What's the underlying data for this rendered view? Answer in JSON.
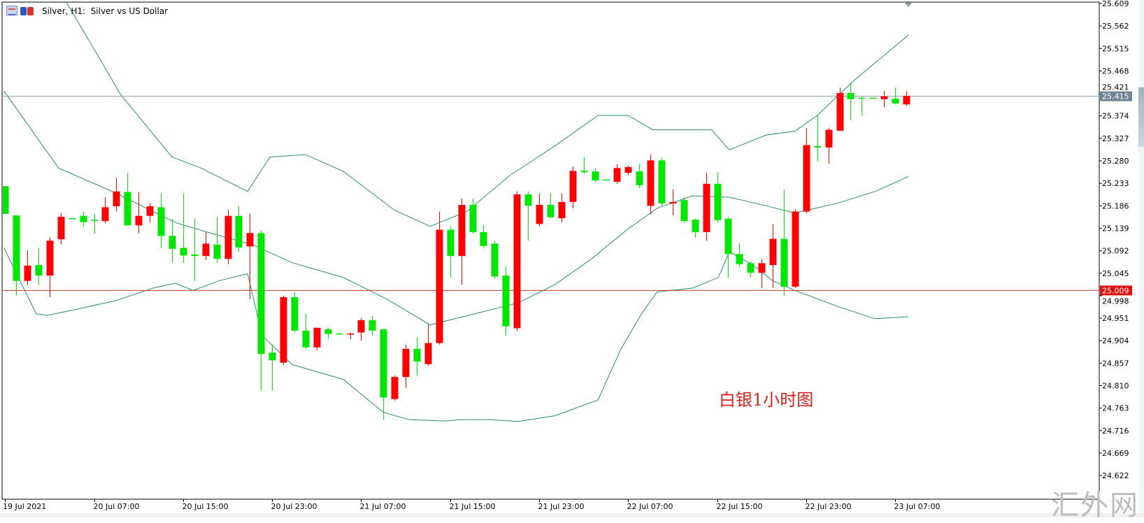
{
  "header": {
    "title": "Silver, H1:  Silver vs US Dollar"
  },
  "annotation": "白银1小时图",
  "watermark": "汇外网",
  "chart_data": {
    "type": "candlestick",
    "title": "Silver, H1:  Silver vs US Dollar",
    "colors": {
      "up": "#ff0000",
      "down": "#00e600",
      "bands": "#2e8b6e",
      "last_price_line": "#8a9aa6",
      "level_line": "#c0392b"
    },
    "ylim": [
      24.622,
      25.609
    ],
    "y_ticks": [
      "25.609",
      "25.562",
      "25.515",
      "25.468",
      "25.421",
      "25.374",
      "25.327",
      "25.280",
      "25.233",
      "25.186",
      "25.139",
      "25.092",
      "25.045",
      "24.998",
      "24.951",
      "24.904",
      "24.857",
      "24.810",
      "24.763",
      "24.716",
      "24.669",
      "24.622"
    ],
    "x_ticks": [
      {
        "i": 0,
        "label": "19 Jul 2021"
      },
      {
        "i": 8,
        "label": "20 Jul 07:00"
      },
      {
        "i": 16,
        "label": "20 Jul 15:00"
      },
      {
        "i": 24,
        "label": "20 Jul 23:00"
      },
      {
        "i": 32,
        "label": "21 Jul 07:00"
      },
      {
        "i": 40,
        "label": "21 Jul 15:00"
      },
      {
        "i": 48,
        "label": "21 Jul 23:00"
      },
      {
        "i": 56,
        "label": "22 Jul 07:00"
      },
      {
        "i": 64,
        "label": "22 Jul 15:00"
      },
      {
        "i": 72,
        "label": "22 Jul 23:00"
      },
      {
        "i": 80,
        "label": "23 Jul 07:00"
      }
    ],
    "last_price": {
      "value": 25.415,
      "label": "25.415"
    },
    "level_line": {
      "value": 25.009,
      "label": "25.009"
    },
    "ohlc": [
      [
        25.227,
        25.227,
        25.169,
        25.169
      ],
      [
        25.166,
        25.166,
        24.998,
        25.029
      ],
      [
        25.029,
        25.093,
        25.021,
        25.061
      ],
      [
        25.062,
        25.098,
        25.021,
        25.04
      ],
      [
        25.04,
        25.12,
        24.995,
        25.113
      ],
      [
        25.116,
        25.171,
        25.105,
        25.163
      ],
      [
        25.16,
        25.16,
        25.159,
        25.159
      ],
      [
        25.165,
        25.174,
        25.143,
        25.152
      ],
      [
        25.157,
        25.169,
        25.128,
        25.156
      ],
      [
        25.154,
        25.204,
        25.149,
        25.183
      ],
      [
        25.185,
        25.245,
        25.174,
        25.216
      ],
      [
        25.215,
        25.255,
        25.145,
        25.145
      ],
      [
        25.145,
        25.215,
        25.128,
        25.165
      ],
      [
        25.165,
        25.192,
        25.151,
        25.185
      ],
      [
        25.183,
        25.212,
        25.098,
        25.123
      ],
      [
        25.123,
        25.159,
        25.067,
        25.096
      ],
      [
        25.098,
        25.212,
        25.067,
        25.082
      ],
      [
        25.084,
        25.159,
        25.029,
        25.081
      ],
      [
        25.081,
        25.131,
        25.072,
        25.107
      ],
      [
        25.105,
        25.163,
        25.067,
        25.075
      ],
      [
        25.075,
        25.178,
        25.064,
        25.165
      ],
      [
        25.165,
        25.186,
        25.09,
        25.099
      ],
      [
        25.101,
        25.169,
        24.991,
        25.129
      ],
      [
        25.129,
        25.134,
        24.8,
        24.876
      ],
      [
        24.879,
        24.896,
        24.8,
        24.863
      ],
      [
        24.858,
        24.998,
        24.854,
        24.995
      ],
      [
        24.995,
        25.006,
        24.921,
        24.925
      ],
      [
        24.925,
        24.96,
        24.887,
        24.89
      ],
      [
        24.89,
        24.931,
        24.884,
        24.931
      ],
      [
        24.928,
        24.931,
        24.907,
        24.918
      ],
      [
        24.919,
        24.919,
        24.918,
        24.918
      ],
      [
        24.918,
        24.921,
        24.907,
        24.919
      ],
      [
        24.921,
        24.951,
        24.904,
        24.947
      ],
      [
        24.947,
        24.956,
        24.915,
        24.925
      ],
      [
        24.928,
        24.928,
        24.739,
        24.785
      ],
      [
        24.782,
        24.831,
        24.779,
        24.828
      ],
      [
        24.828,
        24.896,
        24.805,
        24.887
      ],
      [
        24.887,
        24.911,
        24.831,
        24.86
      ],
      [
        24.855,
        24.939,
        24.851,
        24.899
      ],
      [
        24.899,
        25.174,
        24.896,
        25.136
      ],
      [
        25.136,
        25.143,
        25.036,
        25.081
      ],
      [
        25.081,
        25.201,
        25.021,
        25.188
      ],
      [
        25.188,
        25.201,
        25.128,
        25.131
      ],
      [
        25.131,
        25.146,
        25.098,
        25.102
      ],
      [
        25.107,
        25.113,
        25.033,
        25.038
      ],
      [
        25.04,
        25.059,
        24.915,
        24.934
      ],
      [
        24.93,
        25.216,
        24.925,
        25.21
      ],
      [
        25.21,
        25.216,
        25.113,
        25.186
      ],
      [
        25.148,
        25.212,
        25.143,
        25.188
      ],
      [
        25.188,
        25.212,
        25.159,
        25.162
      ],
      [
        25.16,
        25.212,
        25.151,
        25.194
      ],
      [
        25.194,
        25.268,
        25.181,
        25.259
      ],
      [
        25.259,
        25.288,
        25.253,
        25.256
      ],
      [
        25.258,
        25.265,
        25.235,
        25.239
      ],
      [
        25.241,
        25.241,
        25.239,
        25.239
      ],
      [
        25.236,
        25.273,
        25.232,
        25.265
      ],
      [
        25.255,
        25.27,
        25.25,
        25.267
      ],
      [
        25.258,
        25.273,
        25.223,
        25.229
      ],
      [
        25.186,
        25.293,
        25.168,
        25.281
      ],
      [
        25.281,
        25.287,
        25.186,
        25.191
      ],
      [
        25.191,
        25.22,
        25.166,
        25.194
      ],
      [
        25.198,
        25.204,
        25.151,
        25.154
      ],
      [
        25.157,
        25.159,
        25.12,
        25.131
      ],
      [
        25.131,
        25.255,
        25.113,
        25.232
      ],
      [
        25.232,
        25.256,
        25.151,
        25.156
      ],
      [
        25.159,
        25.162,
        25.036,
        25.085
      ],
      [
        25.085,
        25.108,
        25.059,
        25.064
      ],
      [
        25.066,
        25.07,
        25.036,
        25.046
      ],
      [
        25.046,
        25.075,
        25.014,
        25.066
      ],
      [
        25.062,
        25.148,
        25.014,
        25.117
      ],
      [
        25.117,
        25.22,
        24.998,
        25.017
      ],
      [
        25.017,
        25.178,
        25.014,
        25.174
      ],
      [
        25.174,
        25.349,
        25.171,
        25.313
      ],
      [
        25.311,
        25.377,
        25.279,
        25.308
      ],
      [
        25.308,
        25.349,
        25.274,
        25.345
      ],
      [
        25.343,
        25.433,
        25.342,
        25.422
      ],
      [
        25.422,
        25.442,
        25.365,
        25.409
      ],
      [
        25.412,
        25.415,
        25.375,
        25.41
      ],
      [
        25.412,
        25.412,
        25.41,
        25.41
      ],
      [
        25.409,
        25.426,
        25.392,
        25.415
      ],
      [
        25.41,
        25.433,
        25.398,
        25.4
      ],
      [
        25.398,
        25.426,
        25.395,
        25.416
      ]
    ],
    "bands": {
      "upper": [
        [
          5.0,
          25.64
        ],
        [
          5.4,
          25.616
        ],
        [
          10.4,
          25.418
        ],
        [
          15.0,
          25.288
        ],
        [
          17.6,
          25.265
        ],
        [
          21.8,
          25.216
        ],
        [
          23.8,
          25.288
        ],
        [
          27.0,
          25.293
        ],
        [
          30.4,
          25.258
        ],
        [
          35.0,
          25.177
        ],
        [
          38.2,
          25.143
        ],
        [
          41.5,
          25.174
        ],
        [
          45.4,
          25.25
        ],
        [
          49.4,
          25.311
        ],
        [
          53.3,
          25.375
        ],
        [
          56.0,
          25.375
        ],
        [
          58.2,
          25.345
        ],
        [
          63.5,
          25.345
        ],
        [
          65.1,
          25.303
        ],
        [
          68.4,
          25.334
        ],
        [
          71.0,
          25.342
        ],
        [
          73.0,
          25.375
        ],
        [
          76.3,
          25.448
        ],
        [
          81.2,
          25.543
        ]
      ],
      "middle": [
        [
          -0.1,
          25.426
        ],
        [
          4.8,
          25.265
        ],
        [
          10.0,
          25.212
        ],
        [
          15.3,
          25.151
        ],
        [
          18.6,
          25.128
        ],
        [
          22.2,
          25.105
        ],
        [
          25.8,
          25.067
        ],
        [
          30.4,
          25.036
        ],
        [
          34.3,
          24.991
        ],
        [
          38.2,
          24.937
        ],
        [
          42.2,
          24.96
        ],
        [
          46.1,
          24.983
        ],
        [
          49.4,
          25.021
        ],
        [
          52.7,
          25.075
        ],
        [
          55.9,
          25.136
        ],
        [
          58.6,
          25.181
        ],
        [
          61.8,
          25.207
        ],
        [
          65.1,
          25.204
        ],
        [
          68.4,
          25.186
        ],
        [
          71.0,
          25.171
        ],
        [
          74.9,
          25.192
        ],
        [
          78.2,
          25.216
        ],
        [
          81.2,
          25.247
        ]
      ],
      "lower": [
        [
          -0.1,
          25.098
        ],
        [
          2.8,
          24.96
        ],
        [
          3.8,
          24.957
        ],
        [
          6.1,
          24.968
        ],
        [
          10.0,
          24.988
        ],
        [
          13.3,
          25.014
        ],
        [
          15.3,
          25.024
        ],
        [
          16.9,
          25.009
        ],
        [
          19.2,
          25.029
        ],
        [
          21.8,
          25.044
        ],
        [
          23.1,
          24.915
        ],
        [
          25.8,
          24.854
        ],
        [
          30.4,
          24.823
        ],
        [
          34.0,
          24.754
        ],
        [
          36.3,
          24.739
        ],
        [
          39.5,
          24.736
        ],
        [
          40.9,
          24.739
        ],
        [
          43.5,
          24.739
        ],
        [
          46.1,
          24.735
        ],
        [
          49.4,
          24.747
        ],
        [
          53.3,
          24.78
        ],
        [
          55.3,
          24.884
        ],
        [
          57.2,
          24.96
        ],
        [
          58.6,
          25.006
        ],
        [
          61.8,
          25.014
        ],
        [
          64.1,
          25.036
        ],
        [
          65.1,
          25.09
        ],
        [
          67.1,
          25.064
        ],
        [
          69.0,
          25.029
        ],
        [
          71.0,
          25.009
        ],
        [
          74.9,
          24.975
        ],
        [
          78.2,
          24.95
        ],
        [
          81.2,
          24.954
        ]
      ]
    }
  }
}
